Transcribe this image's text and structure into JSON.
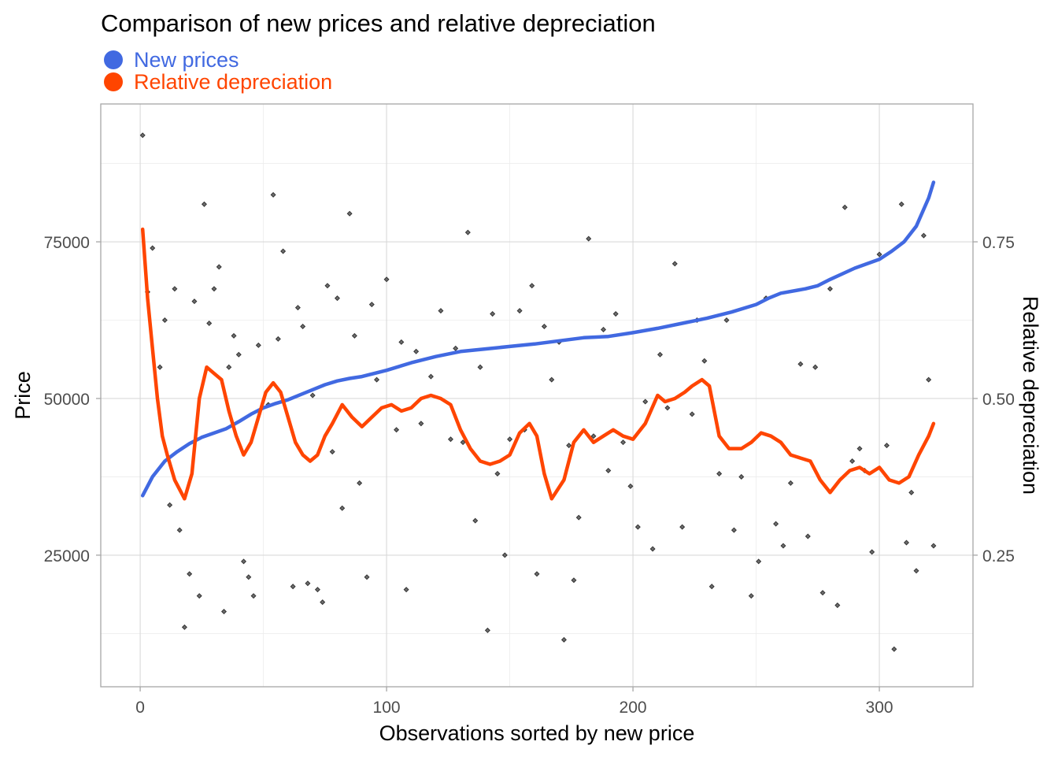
{
  "chart_data": {
    "type": "line",
    "title": "Comparison of new prices and relative depreciation",
    "xlabel": "Observations sorted by new price",
    "ylabel": "Price",
    "ylabel_right": "Relative depreciation",
    "xlim": [
      -16,
      338
    ],
    "ylim": [
      4000,
      97000
    ],
    "y2lim": [
      0.04,
      0.97
    ],
    "x_ticks": [
      0,
      100,
      200,
      300
    ],
    "x_tick_labels": [
      "0",
      "100",
      "200",
      "300"
    ],
    "y_ticks": [
      25000,
      50000,
      75000
    ],
    "y_tick_labels": [
      "25000",
      "50000",
      "75000"
    ],
    "y2_ticks": [
      0.25,
      0.5,
      0.75
    ],
    "y2_tick_labels": [
      "0.25",
      "0.50",
      "0.75"
    ],
    "grid": true,
    "legend_position": "top-left",
    "colors": {
      "new_prices": "#4169E1",
      "relative_depreciation": "#FF4500",
      "points": "#333333"
    },
    "series": [
      {
        "name": "New prices",
        "axis": "left",
        "x": [
          1,
          5,
          10,
          15,
          20,
          25,
          30,
          35,
          40,
          45,
          50,
          55,
          60,
          65,
          70,
          75,
          80,
          85,
          90,
          100,
          110,
          120,
          130,
          140,
          150,
          160,
          170,
          180,
          190,
          200,
          210,
          220,
          230,
          240,
          250,
          255,
          260,
          270,
          275,
          280,
          290,
          295,
          300,
          305,
          310,
          315,
          320,
          322
        ],
        "y": [
          34500,
          37500,
          40000,
          41500,
          42800,
          43800,
          44500,
          45200,
          46300,
          47500,
          48500,
          49200,
          49800,
          50600,
          51400,
          52200,
          52800,
          53200,
          53500,
          54500,
          55700,
          56700,
          57500,
          57900,
          58300,
          58700,
          59200,
          59700,
          59900,
          60500,
          61200,
          62000,
          62800,
          63800,
          65000,
          66000,
          66800,
          67500,
          68000,
          69000,
          70800,
          71500,
          72200,
          73500,
          75000,
          77500,
          82000,
          84500
        ]
      },
      {
        "name": "Relative depreciation",
        "axis": "right",
        "x": [
          1,
          3,
          5,
          7,
          9,
          11,
          14,
          18,
          21,
          24,
          27,
          30,
          33,
          36,
          39,
          42,
          45,
          48,
          51,
          54,
          57,
          60,
          63,
          66,
          69,
          72,
          75,
          78,
          82,
          86,
          90,
          94,
          98,
          102,
          106,
          110,
          114,
          118,
          122,
          126,
          130,
          134,
          138,
          142,
          146,
          150,
          154,
          158,
          161,
          164,
          167,
          172,
          176,
          180,
          184,
          188,
          192,
          196,
          200,
          205,
          210,
          213,
          217,
          221,
          224,
          228,
          231,
          235,
          239,
          244,
          248,
          252,
          256,
          260,
          264,
          268,
          272,
          276,
          280,
          284,
          288,
          292,
          296,
          300,
          304,
          308,
          312,
          316,
          320,
          322
        ],
        "y": [
          0.77,
          0.66,
          0.58,
          0.5,
          0.44,
          0.41,
          0.37,
          0.34,
          0.38,
          0.5,
          0.55,
          0.54,
          0.53,
          0.48,
          0.44,
          0.41,
          0.43,
          0.47,
          0.51,
          0.525,
          0.51,
          0.47,
          0.43,
          0.41,
          0.4,
          0.41,
          0.44,
          0.46,
          0.49,
          0.47,
          0.455,
          0.47,
          0.485,
          0.49,
          0.48,
          0.485,
          0.5,
          0.505,
          0.5,
          0.49,
          0.45,
          0.42,
          0.4,
          0.395,
          0.4,
          0.41,
          0.445,
          0.46,
          0.44,
          0.38,
          0.34,
          0.37,
          0.43,
          0.45,
          0.43,
          0.44,
          0.45,
          0.44,
          0.435,
          0.46,
          0.505,
          0.495,
          0.5,
          0.51,
          0.52,
          0.53,
          0.52,
          0.44,
          0.42,
          0.42,
          0.43,
          0.445,
          0.44,
          0.43,
          0.41,
          0.405,
          0.4,
          0.37,
          0.35,
          0.37,
          0.385,
          0.39,
          0.38,
          0.39,
          0.37,
          0.365,
          0.375,
          0.41,
          0.44,
          0.46
        ]
      }
    ],
    "points": {
      "name": "",
      "axis": "left",
      "x": [
        1,
        3,
        5,
        8,
        10,
        12,
        14,
        16,
        18,
        20,
        22,
        24,
        26,
        28,
        30,
        32,
        34,
        36,
        38,
        40,
        42,
        44,
        46,
        48,
        52,
        54,
        56,
        58,
        62,
        64,
        66,
        68,
        70,
        72,
        74,
        76,
        78,
        80,
        82,
        85,
        87,
        89,
        92,
        94,
        96,
        100,
        104,
        106,
        108,
        112,
        114,
        118,
        122,
        126,
        128,
        131,
        133,
        136,
        138,
        141,
        143,
        145,
        148,
        150,
        154,
        156,
        159,
        161,
        164,
        167,
        170,
        172,
        174,
        176,
        178,
        182,
        184,
        188,
        190,
        193,
        196,
        199,
        202,
        205,
        208,
        211,
        214,
        217,
        220,
        224,
        226,
        229,
        232,
        235,
        238,
        241,
        244,
        248,
        251,
        254,
        258,
        261,
        264,
        268,
        271,
        274,
        277,
        280,
        283,
        286,
        289,
        292,
        294,
        297,
        300,
        303,
        306,
        309,
        311,
        313,
        315,
        318,
        320,
        322
      ],
      "y": [
        92000,
        67000,
        74000,
        55000,
        62500,
        33000,
        67500,
        29000,
        13500,
        22000,
        65500,
        18500,
        81000,
        62000,
        67500,
        71000,
        16000,
        55000,
        60000,
        57000,
        24000,
        21500,
        18500,
        58500,
        49000,
        82500,
        59500,
        73500,
        20000,
        64500,
        61500,
        20500,
        50500,
        19500,
        17500,
        68000,
        41500,
        66000,
        32500,
        79500,
        60000,
        36500,
        21500,
        65000,
        53000,
        69000,
        45000,
        59000,
        19500,
        57500,
        46000,
        53500,
        64000,
        43500,
        58000,
        43000,
        76500,
        30500,
        55000,
        13000,
        63500,
        38000,
        25000,
        43500,
        64000,
        45000,
        68000,
        22000,
        61500,
        53000,
        59000,
        11500,
        42500,
        21000,
        31000,
        75500,
        44000,
        61000,
        38500,
        63500,
        43000,
        36000,
        29500,
        49500,
        26000,
        57000,
        48500,
        71500,
        29500,
        47500,
        62500,
        56000,
        20000,
        38000,
        62500,
        29000,
        37500,
        18500,
        24000,
        66000,
        30000,
        26500,
        36500,
        55500,
        28000,
        55000,
        19000,
        67500,
        17000,
        80500,
        40000,
        42000,
        38500,
        25500,
        73000,
        42500,
        10000,
        81000,
        27000,
        35000,
        22500,
        76000,
        53000,
        26500
      ]
    }
  }
}
